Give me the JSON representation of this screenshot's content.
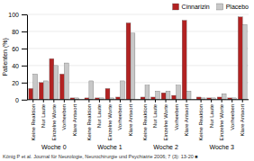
{
  "chart_data": {
    "type": "bar",
    "ylabel": "Patienten (%)",
    "categories": [
      "Keine Reaktion",
      "Nur Laute",
      "Einzelne Worte",
      "Vorheeben",
      "Klare Antwort",
      "Keine Reaktion",
      "Nur Laute",
      "Einzelne Worte",
      "Vorheeben",
      "Klare Antwort",
      "Keine Reaktion",
      "Nur Laute",
      "Einzelne Worte",
      "Vorheeben",
      "Klare Antwort",
      "Keine Reaktion",
      "Nur Laute",
      "Einzelne Worte",
      "Vorheeben",
      "Klare Antwort"
    ],
    "groups": [
      "Woche 0",
      "Woche 1",
      "Woche 2",
      "Woche 3"
    ],
    "series": [
      {
        "name": "Cinnarizin",
        "color": "#b22222",
        "values": [
          13,
          20,
          48,
          30,
          2,
          2,
          2,
          13,
          3,
          90,
          3,
          3,
          8,
          5,
          93,
          3,
          2,
          3,
          2,
          97
        ]
      },
      {
        "name": "Placebo",
        "color": "#c8c8c8",
        "values": [
          30,
          22,
          40,
          43,
          2,
          22,
          2,
          2,
          22,
          78,
          17,
          10,
          10,
          17,
          10,
          2,
          2,
          7,
          2,
          88
        ]
      }
    ],
    "ylim": [
      0,
      100
    ],
    "yticks": [
      0,
      20,
      40,
      60,
      80,
      100
    ],
    "grid": true,
    "legend": "upper right",
    "caption": "König P et al. Journal für Neurologie, Neurochirurgie und Psychiatrie 2006; 7 (3): 13-20 ■"
  }
}
